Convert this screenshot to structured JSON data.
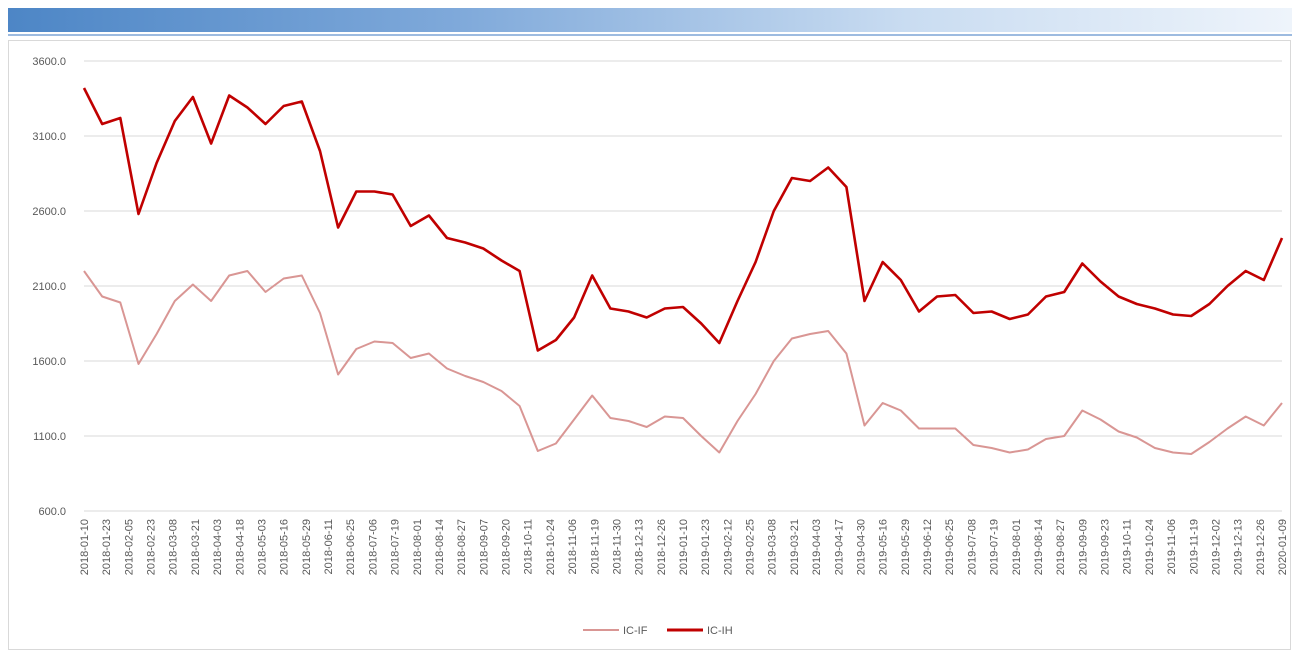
{
  "chart_data": {
    "type": "line",
    "title": "",
    "xlabel": "",
    "ylabel": "",
    "ylim": [
      600,
      3600
    ],
    "y_ticks": [
      "600.0",
      "1100.0",
      "1600.0",
      "2100.0",
      "2600.0",
      "3100.0",
      "3600.0"
    ],
    "grid": true,
    "legend_position": "bottom",
    "x_ticks": [
      "2018-01-10",
      "2018-01-23",
      "2018-02-05",
      "2018-02-23",
      "2018-03-08",
      "2018-03-21",
      "2018-04-03",
      "2018-04-18",
      "2018-05-03",
      "2018-05-16",
      "2018-05-29",
      "2018-06-11",
      "2018-06-25",
      "2018-07-06",
      "2018-07-19",
      "2018-08-01",
      "2018-08-14",
      "2018-08-27",
      "2018-09-07",
      "2018-09-20",
      "2018-10-11",
      "2018-10-24",
      "2018-11-06",
      "2018-11-19",
      "2018-11-30",
      "2018-12-13",
      "2018-12-26",
      "2019-01-10",
      "2019-01-23",
      "2019-02-12",
      "2019-02-25",
      "2019-03-08",
      "2019-03-21",
      "2019-04-03",
      "2019-04-17",
      "2019-04-30",
      "2019-05-16",
      "2019-05-29",
      "2019-06-12",
      "2019-06-25",
      "2019-07-08",
      "2019-07-19",
      "2019-08-01",
      "2019-08-14",
      "2019-08-27",
      "2019-09-09",
      "2019-09-23",
      "2019-10-11",
      "2019-10-24",
      "2019-11-06",
      "2019-11-19",
      "2019-12-02",
      "2019-12-13",
      "2019-12-26",
      "2020-01-09"
    ],
    "series": [
      {
        "name": "IC-IF",
        "color": "#d99694",
        "values": [
          2200,
          2030,
          1990,
          1580,
          1780,
          2000,
          2110,
          2000,
          2170,
          2200,
          2060,
          2150,
          2170,
          1920,
          1510,
          1680,
          1730,
          1720,
          1620,
          1650,
          1550,
          1500,
          1460,
          1400,
          1300,
          1000,
          1050,
          1210,
          1370,
          1220,
          1200,
          1160,
          1230,
          1220,
          1100,
          990,
          1200,
          1380,
          1600,
          1750,
          1780,
          1800,
          1650,
          1170,
          1320,
          1270,
          1150,
          1150,
          1150,
          1040,
          1020,
          990,
          1010,
          1080,
          1100,
          1270,
          1210,
          1130,
          1090,
          1020,
          990,
          980,
          1060,
          1150,
          1230,
          1170,
          1320
        ]
      },
      {
        "name": "IC-IH",
        "color": "#c00000",
        "values": [
          3420,
          3180,
          3220,
          2580,
          2920,
          3200,
          3360,
          3050,
          3370,
          3290,
          3180,
          3300,
          3330,
          3000,
          2490,
          2730,
          2730,
          2710,
          2500,
          2570,
          2420,
          2390,
          2350,
          2270,
          2200,
          1670,
          1740,
          1890,
          2170,
          1950,
          1930,
          1890,
          1950,
          1960,
          1850,
          1720,
          2000,
          2260,
          2600,
          2820,
          2800,
          2890,
          2760,
          2000,
          2260,
          2140,
          1930,
          2030,
          2040,
          1920,
          1930,
          1880,
          1910,
          2030,
          2060,
          2250,
          2130,
          2030,
          1980,
          1950,
          1910,
          1900,
          1980,
          2100,
          2200,
          2140,
          2420
        ]
      }
    ]
  }
}
